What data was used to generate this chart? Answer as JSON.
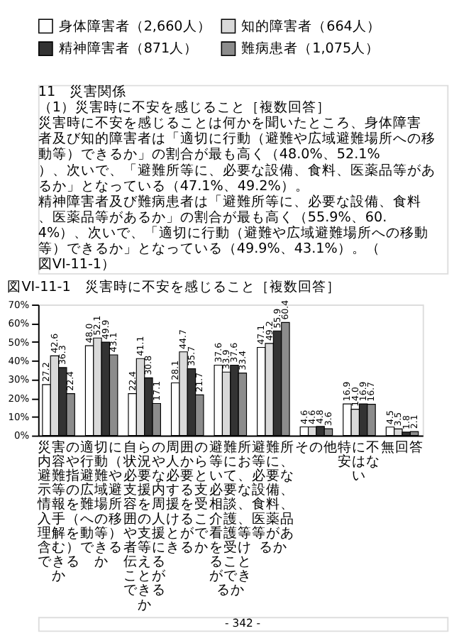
{
  "chart_data": {
    "type": "bar",
    "title": "図VI-11-1　災害時に不安を感じること［複数回答］",
    "categories": [
      "災害の内容や避難指示等の情報を入手（理解を含む）できるか",
      "適切に行動（避難や広域避難場所への移動等）できるか",
      "自らの状況や必要な支援内容を周囲の人や支援者等に伝えることができるか",
      "周囲の人から必要とする支援を受けることができるか",
      "避難所等において、必要な相談、介護、看護等を受けることができるか",
      "避難所等に、必要な設備、食料、医薬品等があるか",
      "その他",
      "特に不安はない",
      "無回答"
    ],
    "series": [
      {
        "name": "身体障害者（2,660人）",
        "color": "#ffffff",
        "values": [
          27.2,
          48.0,
          22.4,
          28.1,
          37.6,
          47.1,
          4.6,
          16.9,
          4.5
        ],
        "value_labels": [
          "27.2",
          "48.0",
          "22.4",
          "28.1",
          "37.6",
          "47.1",
          "4.6",
          "16.9",
          "4.5"
        ]
      },
      {
        "name": "知的障害者（664人）",
        "color": "#d9d9d9",
        "values": [
          42.6,
          52.1,
          41.1,
          44.7,
          33.9,
          49.2,
          4.6,
          14.0,
          3.5
        ],
        "value_labels": [
          "42.6",
          "52.1",
          "41.1",
          "44.7",
          "33.9",
          "49.2",
          "4.6",
          "14.0",
          "3.5"
        ]
      },
      {
        "name": "精神障害者（871人）",
        "color": "#333333",
        "values": [
          36.3,
          49.9,
          30.8,
          35.7,
          37.6,
          55.9,
          4.8,
          16.9,
          1.8
        ],
        "value_labels": [
          "36.3",
          "49.9",
          "30.8",
          "35.7",
          "37.6",
          "55.9",
          "4.8",
          "16.9",
          "1.8"
        ]
      },
      {
        "name": "難病患者（1,075人）",
        "color": "#8c8c8c",
        "values": [
          22.4,
          43.1,
          17.1,
          21.7,
          33.4,
          60.4,
          3.6,
          16.7,
          2.1
        ],
        "value_labels": [
          "22.4",
          "43.1",
          "17.1",
          "21.7",
          "33.4",
          "60.4",
          "3.6",
          "16.7",
          "2.1"
        ]
      }
    ],
    "ylim": [
      0,
      70
    ],
    "yticks": [
      {
        "value": 0,
        "label": "0%"
      },
      {
        "value": 10,
        "label": "10%"
      },
      {
        "value": 20,
        "label": "20%"
      },
      {
        "value": 30,
        "label": "30%"
      },
      {
        "value": 40,
        "label": "40%"
      },
      {
        "value": 50,
        "label": "50%"
      },
      {
        "value": 60,
        "label": "60%"
      },
      {
        "value": 70,
        "label": "70%"
      }
    ],
    "legend": "top",
    "annotations": [
      "11　災害関係",
      "（1）災害時に不安を感じること［複数回答］",
      "　災害時に不安を感じることは何かを聞いたところ、身体障害者及び知的障害者は「適切に行動（避難や広域避難場所への移動等）できるか」の割合が最も高く（48.0%、52.1%）、次いで、「避難所等に、必要な設備、食料、医薬品等があるか」となっている（47.1%、49.2%）。",
      "　精神障害者及び難病患者は「避難所等に、必要な設備、食料、医薬品等があるか」の割合が最も高く（55.9%、60.4%）、次いで、「適切に行動（避難や広域避難場所への移動等）できるか」となっている（49.9%、43.1%）。（図VI-11-1）",
      "- 342 -"
    ]
  }
}
